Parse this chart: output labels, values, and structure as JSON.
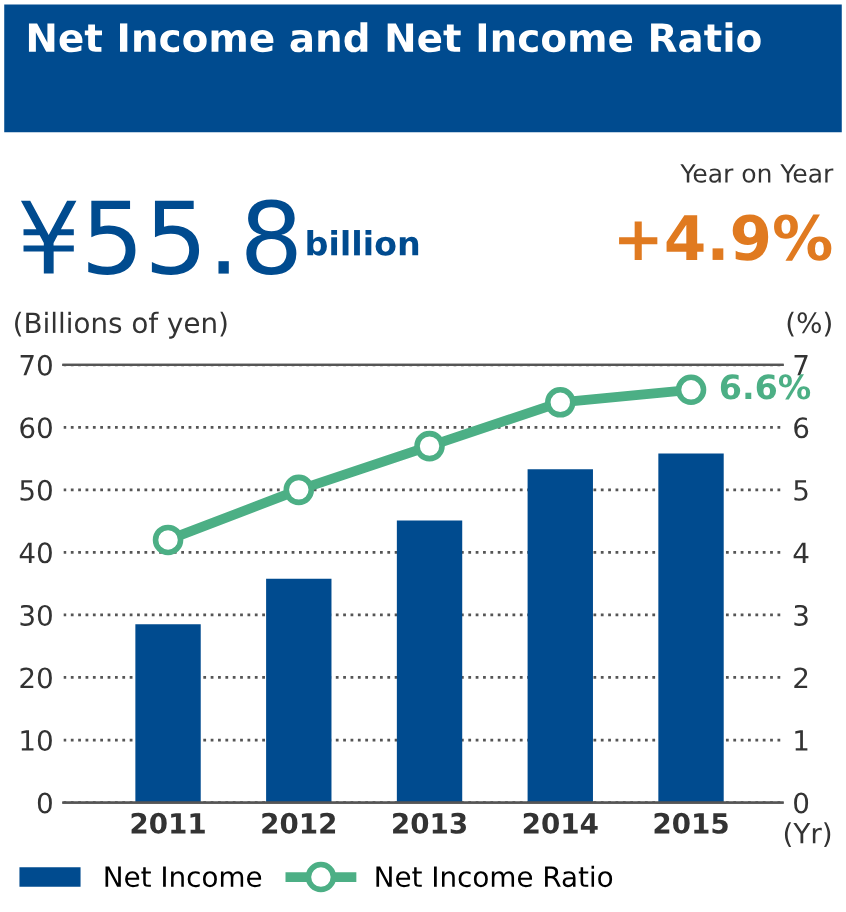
{
  "chart_data": {
    "type": "bar",
    "title": "Net Income and Net Income Ratio",
    "annotations": [
      "¥55.8",
      "billion",
      "Year on Year",
      "+4.9%",
      "6.6%"
    ],
    "ylabel": "(Billions of yen)",
    "y2label": "(%)",
    "xlabel": "(Yr)",
    "categories": [
      "2011",
      "2012",
      "2013",
      "2014",
      "2015"
    ],
    "series": [
      {
        "name": "Net Income",
        "color": "#004b8f",
        "values": [
          28.5,
          35.8,
          45.1,
          53.3,
          55.8
        ]
      },
      {
        "name": "Net Income Ratio",
        "type": "line",
        "axis": "y2",
        "color": "#4caf85",
        "marker": "circle",
        "values": [
          4.2,
          5.0,
          5.7,
          6.4,
          6.6
        ]
      }
    ],
    "ylim": [
      0,
      70
    ],
    "yticks": [
      0,
      10,
      20,
      30,
      40,
      50,
      60,
      70
    ],
    "y2lim": [
      0,
      7
    ],
    "y2ticks": [
      0,
      1,
      2,
      3,
      4,
      5,
      6,
      7
    ],
    "grid": "y",
    "legend": "bottom"
  }
}
